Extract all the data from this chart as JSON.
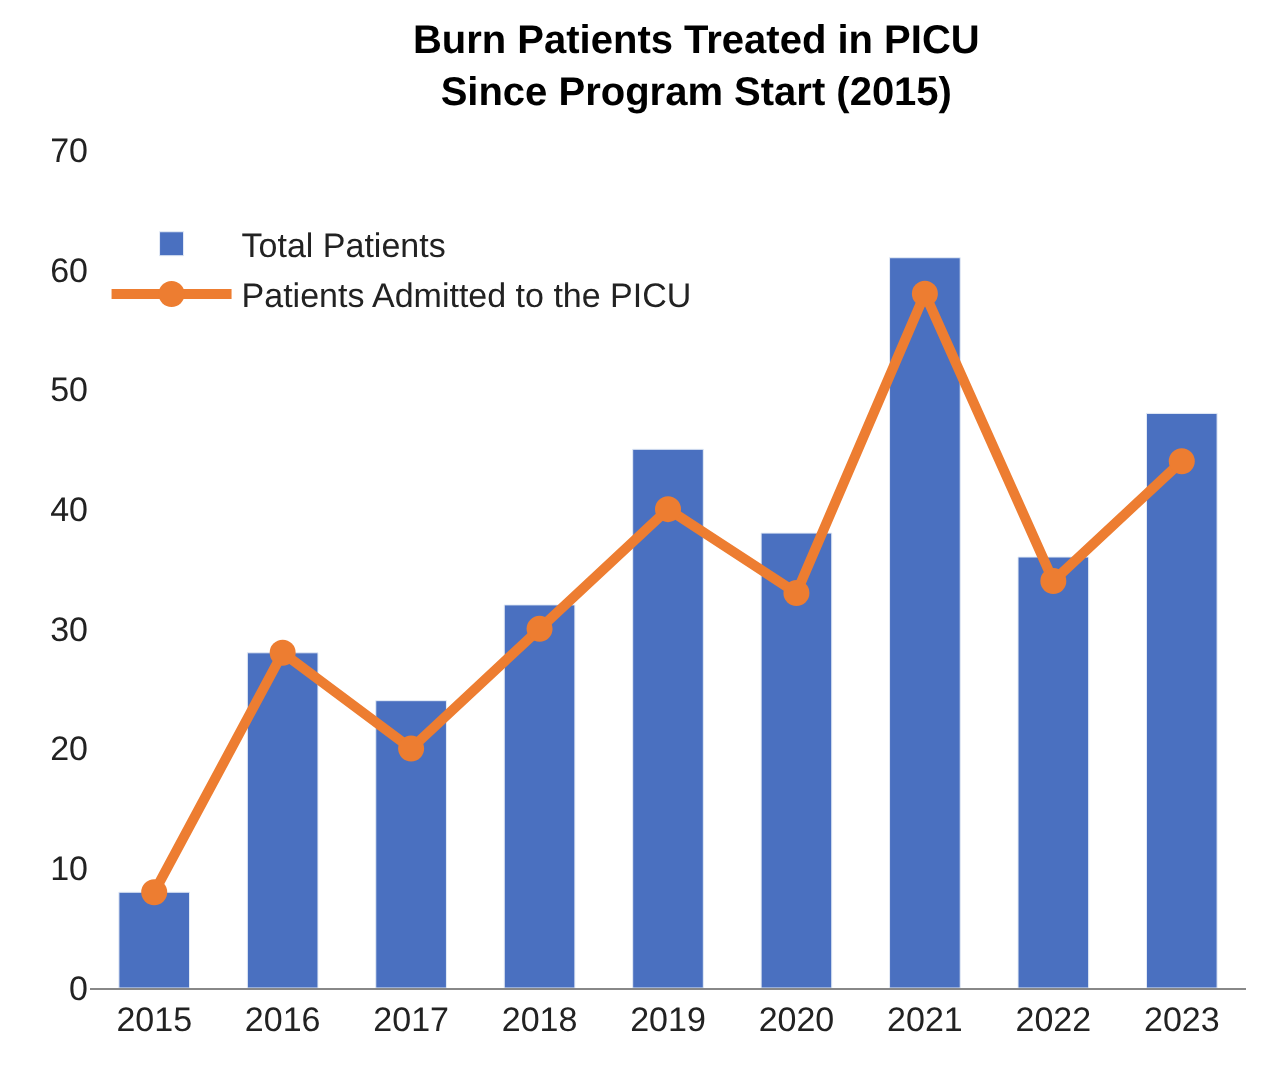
{
  "chart_data": {
    "type": "bar",
    "title": "Burn Patients Treated in PICU Since Program Start (2015)",
    "categories": [
      "2015",
      "2016",
      "2017",
      "2018",
      "2019",
      "2020",
      "2021",
      "2022",
      "2023"
    ],
    "series": [
      {
        "name": "Total Patients",
        "color": "#4a70c0",
        "values": [
          8,
          28,
          24,
          32,
          45,
          38,
          61,
          36,
          48
        ]
      },
      {
        "name": "Patients Admitted to the PICU",
        "type": "line",
        "color": "#ed7d31",
        "marker": "circle",
        "values": [
          8,
          28,
          20,
          30,
          40,
          33,
          58,
          34,
          44
        ]
      }
    ],
    "ylim": [
      0,
      70
    ],
    "yticks": [
      0,
      10,
      20,
      30,
      40,
      50,
      60,
      70
    ],
    "legend": "top left"
  }
}
